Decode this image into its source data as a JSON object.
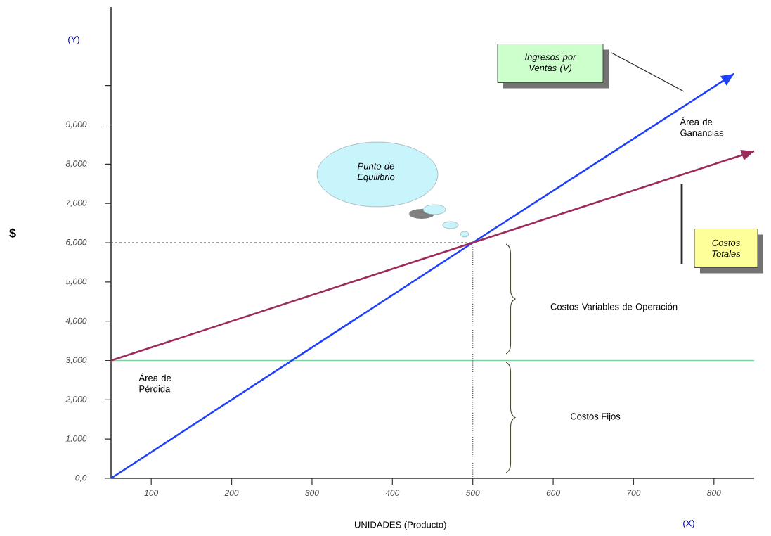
{
  "chart_data": {
    "type": "line",
    "xlabel": "UNIDADES (Producto)",
    "ylabel": "$",
    "xlim": [
      50,
      850
    ],
    "ylim": [
      0,
      12000
    ],
    "xticks": [
      100,
      200,
      300,
      400,
      500,
      600,
      700,
      800
    ],
    "yticks": [
      {
        "value": 0,
        "label": "0,0"
      },
      {
        "value": 1000,
        "label": "1,000"
      },
      {
        "value": 2000,
        "label": "2,000"
      },
      {
        "value": 3000,
        "label": "3,000"
      },
      {
        "value": 4000,
        "label": "4,000"
      },
      {
        "value": 5000,
        "label": "5,000"
      },
      {
        "value": 6000,
        "label": "6,000"
      },
      {
        "value": 7000,
        "label": "7,000"
      },
      {
        "value": 8000,
        "label": "8,000"
      },
      {
        "value": 9000,
        "label": "9,000"
      },
      {
        "value": 10000,
        "label": null
      }
    ],
    "series": [
      {
        "color": "#1f3fff",
        "x": [
          50,
          500,
          825
        ],
        "values": [
          0,
          6000,
          10300
        ]
      },
      {
        "color": "#9c2a5a",
        "x": [
          50,
          500,
          850
        ],
        "values": [
          3000,
          6000,
          8330
        ]
      },
      {
        "color": "#444444",
        "x": [
          50,
          500
        ],
        "values": [
          6000,
          6000
        ],
        "line_style": "dashed"
      },
      {
        "color": "#444444",
        "x": [
          500,
          500
        ],
        "values": [
          6000,
          0
        ],
        "line_style": "dotted"
      }
    ],
    "ref_lines": [
      {
        "axis": "y",
        "value": 3000,
        "color": "#7fcfa0"
      }
    ],
    "annotations": [
      "(Y)",
      "(X)",
      "Ingresos por Ventas (V)",
      "Área de Ganancias",
      "Punto de Equilibrio",
      "Costos Totales",
      "Costos Variables de Operación",
      "Área de Pérdida",
      "Costos Fijos"
    ]
  }
}
